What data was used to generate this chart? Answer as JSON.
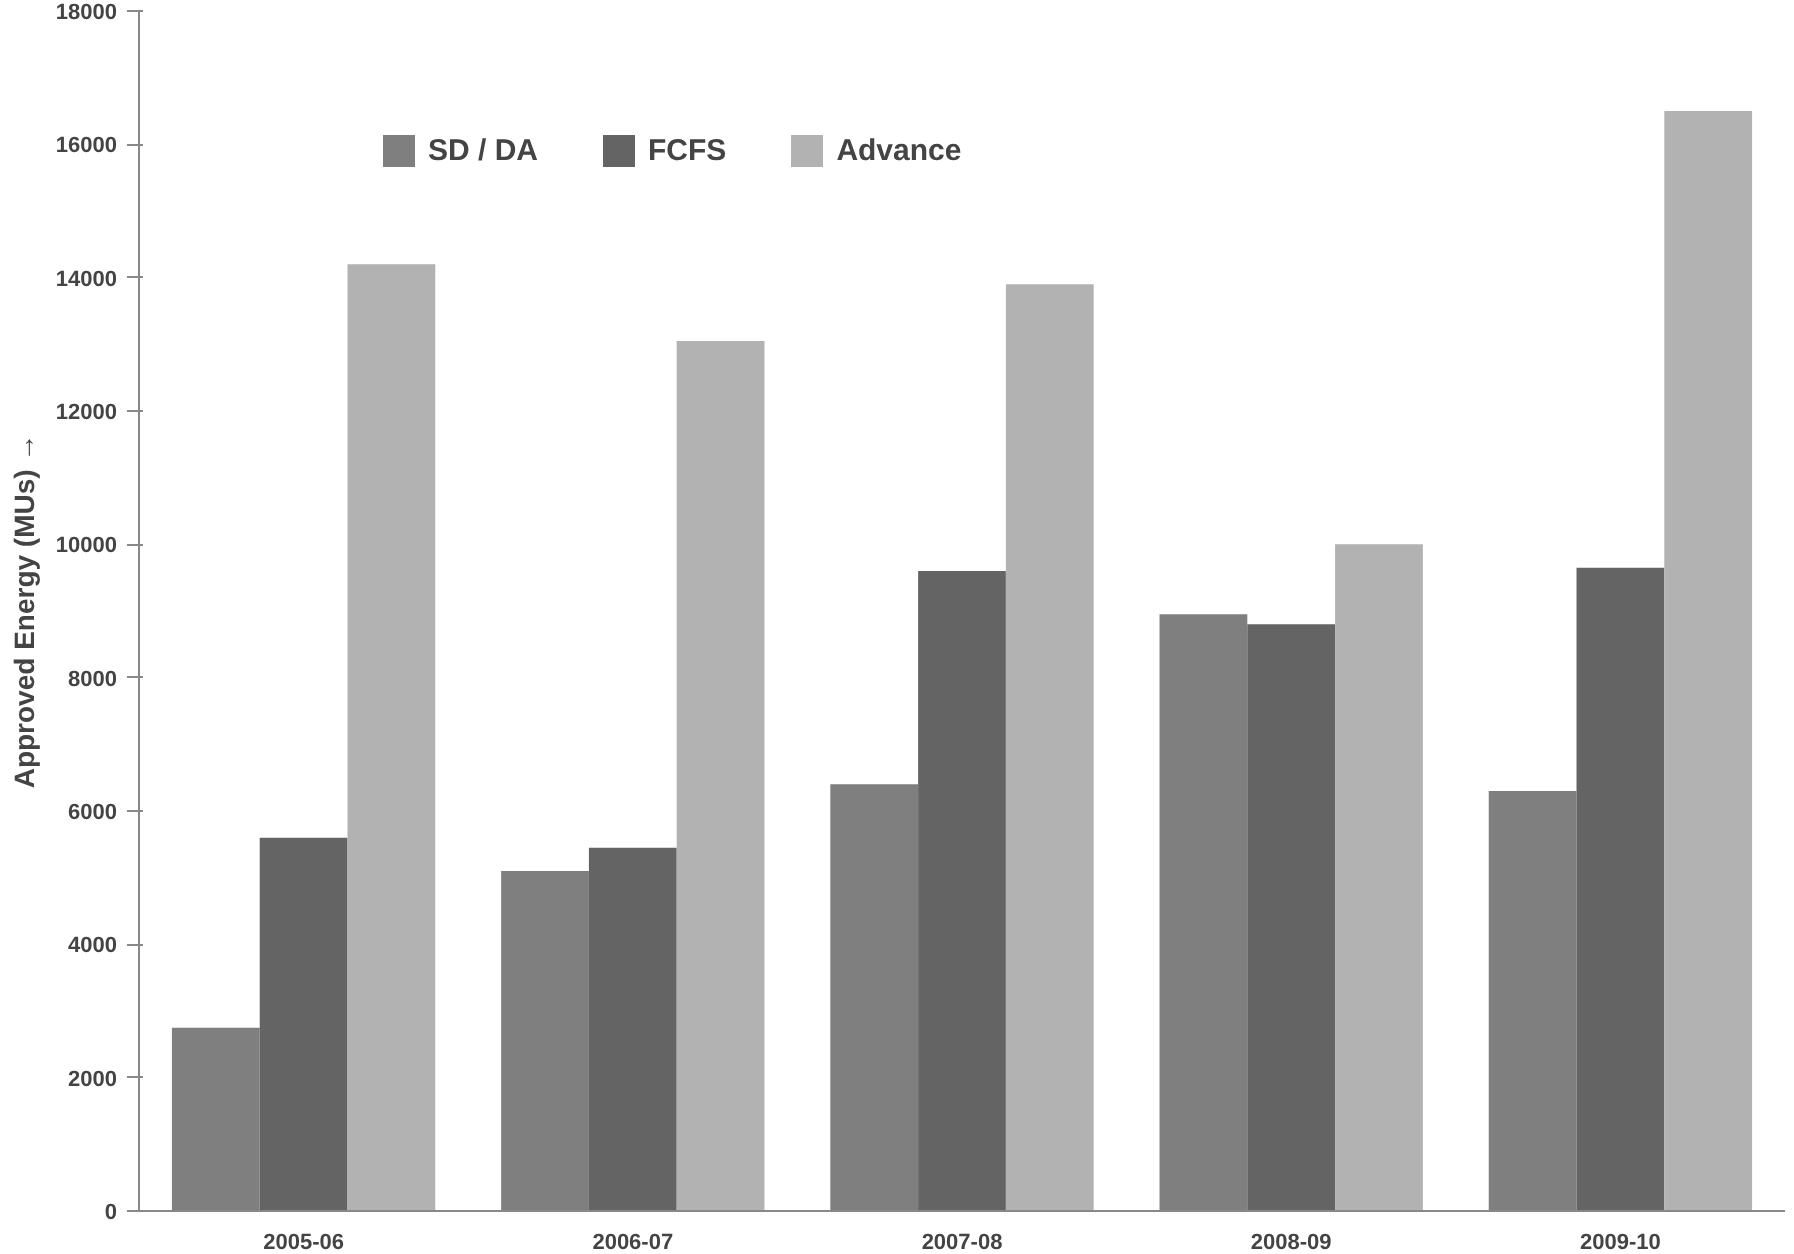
{
  "chart_data": {
    "type": "bar",
    "ylabel": "Approved Energy (MUs) →",
    "categories": [
      "2005-06",
      "2006-07",
      "2007-08",
      "2008-09",
      "2009-10"
    ],
    "series": [
      {
        "name": "SD / DA",
        "color": "#7f7f7f",
        "values": [
          2750,
          5100,
          6400,
          8950,
          6300
        ]
      },
      {
        "name": "FCFS",
        "color": "#646464",
        "values": [
          5600,
          5450,
          9600,
          8800,
          9650
        ]
      },
      {
        "name": "Advance",
        "color": "#b2b2b2",
        "values": [
          14200,
          13050,
          13900,
          10000,
          16500
        ]
      }
    ],
    "ylim": [
      0,
      18000
    ],
    "yticks": [
      0,
      2000,
      4000,
      6000,
      8000,
      10000,
      12000,
      14000,
      16000,
      18000
    ],
    "grid": false,
    "legend": "top"
  }
}
